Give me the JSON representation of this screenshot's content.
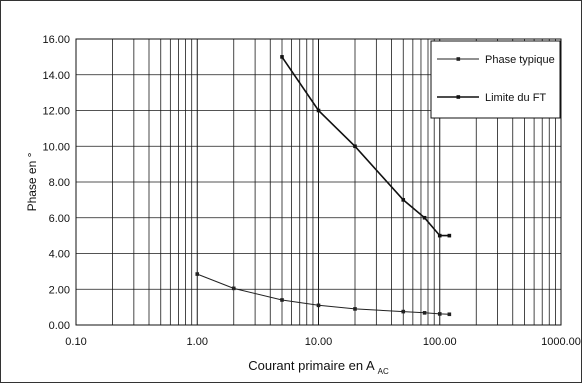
{
  "chart_data": {
    "type": "line",
    "title": "",
    "xlabel": "Courant primaire en A",
    "xlabel_sub": "AC",
    "ylabel": "Phase en °",
    "x_scale": "log",
    "xlim": [
      0.1,
      1000
    ],
    "ylim": [
      0,
      16
    ],
    "grid": true,
    "legend_position": "top-right",
    "x_ticks": [
      0.1,
      1,
      10,
      100,
      1000
    ],
    "x_tick_labels": [
      "0.10",
      "1.00",
      "10.00",
      "100.00",
      "1000.00"
    ],
    "y_ticks": [
      0,
      2,
      4,
      6,
      8,
      10,
      12,
      14,
      16
    ],
    "y_tick_labels": [
      "0.00",
      "2.00",
      "4.00",
      "6.00",
      "8.00",
      "10.00",
      "12.00",
      "14.00",
      "16.00"
    ],
    "series": [
      {
        "name": "Phase typique",
        "color": "#222222",
        "x": [
          1,
          2,
          5,
          10,
          20,
          50,
          75,
          100,
          120
        ],
        "y": [
          2.85,
          2.05,
          1.4,
          1.1,
          0.9,
          0.75,
          0.68,
          0.62,
          0.6
        ]
      },
      {
        "name": "Limite du FT",
        "color": "#111111",
        "x": [
          5,
          10,
          20,
          50,
          75,
          100,
          120
        ],
        "y": [
          15,
          12,
          10,
          7,
          6,
          5,
          5
        ]
      }
    ]
  }
}
